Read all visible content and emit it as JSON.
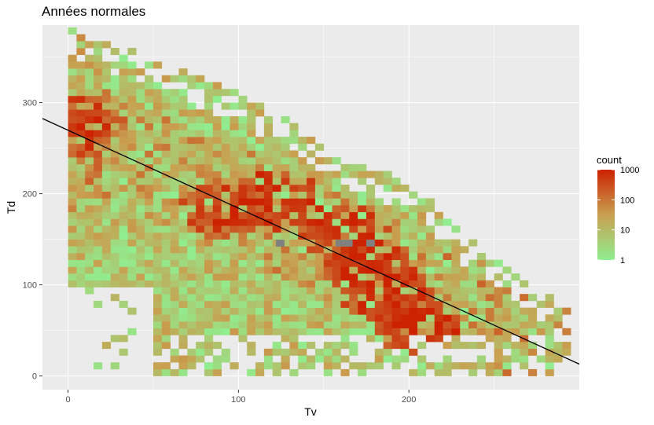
{
  "chart_data": {
    "type": "heatmap",
    "title": "Années normales",
    "xlabel": "Tv",
    "ylabel": "Td",
    "xlim": [
      -15,
      300
    ],
    "ylim": [
      -15,
      385
    ],
    "x_ticks": [
      0,
      100,
      200
    ],
    "y_ticks": [
      0,
      100,
      200,
      300
    ],
    "bin_width_x": 5,
    "bin_width_y": 7.5,
    "fill_scale": {
      "title": "count",
      "transform": "log10",
      "low_color": "#90ee90",
      "mid_color": "#c8a050",
      "high_color": "#cc2200",
      "na_color": "#808080",
      "breaks": [
        1,
        10,
        100,
        1000
      ],
      "labels": [
        "1",
        "10",
        "100",
        "1000"
      ]
    },
    "regression_line": {
      "x": [
        -15,
        300
      ],
      "y": [
        282.5,
        13.0
      ],
      "color": "#000000"
    },
    "grid": true,
    "legend_position": "right",
    "density_model": {
      "upper_boundary": {
        "x": [
          0,
          50,
          100,
          150,
          200,
          250,
          290
        ],
        "y": [
          380,
          345,
          305,
          250,
          205,
          120,
          70
        ]
      },
      "lower_boundary_min_x": 0,
      "hot_spots": [
        {
          "x": 120,
          "y": 190,
          "count": 900
        },
        {
          "x": 160,
          "y": 155,
          "count": 700
        },
        {
          "x": 175,
          "y": 115,
          "count": 800
        },
        {
          "x": 200,
          "y": 55,
          "count": 1000
        },
        {
          "x": 185,
          "y": 85,
          "count": 600
        },
        {
          "x": 90,
          "y": 180,
          "count": 400
        },
        {
          "x": 5,
          "y": 270,
          "count": 300
        }
      ],
      "na_cells": [
        {
          "x": 122,
          "y": 142
        },
        {
          "x": 157,
          "y": 142
        },
        {
          "x": 162,
          "y": 142
        },
        {
          "x": 175,
          "y": 142
        }
      ]
    }
  }
}
